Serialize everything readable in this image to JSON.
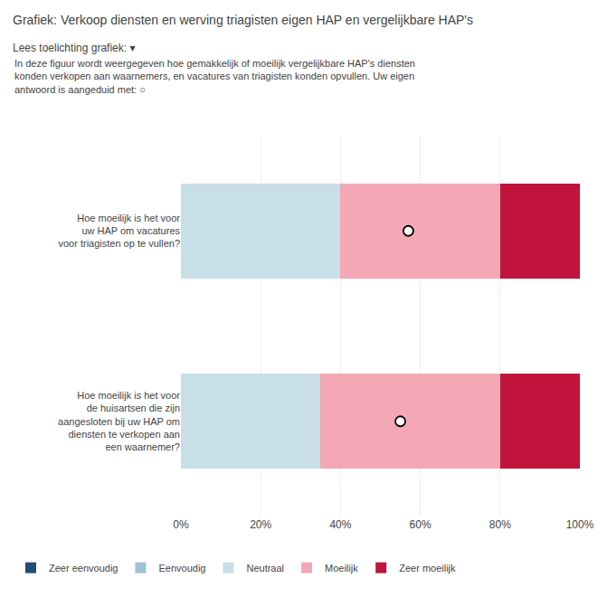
{
  "chart_data": {
    "type": "bar",
    "orientation": "horizontal",
    "stacked": true,
    "title": "Grafiek: Verkoop diensten en werving triagisten eigen HAP en vergelijkbare HAP's",
    "subtitle": "Lees toelichting grafiek: ▾",
    "annotations": [
      "In deze figuur wordt weergegeven hoe gemakkelijk of moeilijk vergelijkbare HAP's diensten\nkonden verkopen aan waarnemers, en vacatures van triagisten konden opvullen. Uw eigen\nantwoord is aangeduid met: ○"
    ],
    "categories": [
      "Hoe moeilijk is het voor\nuw HAP om vacatures\nvoor triagisten op te vullen?",
      "Hoe moeilijk is het voor\nde huisartsen die zijn\naangesloten bij uw HAP om\ndiensten te verkopen aan\neen waarnemer?"
    ],
    "series": [
      {
        "name": "Zeer eenvoudig",
        "color": "#1f4e79",
        "values": [
          0,
          0
        ]
      },
      {
        "name": "Eenvoudig",
        "color": "#9dc3d4",
        "values": [
          0,
          0
        ]
      },
      {
        "name": "Neutraal",
        "color": "#c9dfe8",
        "values": [
          40,
          35
        ]
      },
      {
        "name": "Moeilijk",
        "color": "#f4a7b4",
        "values": [
          40,
          45
        ]
      },
      {
        "name": "Zeer moeilijk",
        "color": "#c0143c",
        "values": [
          20,
          20
        ]
      },
      {
        "type": "scatter",
        "marker": "circle",
        "values": [
          57,
          55
        ]
      }
    ],
    "xlim": [
      0,
      100
    ],
    "xticks": [
      {
        "value": 0,
        "label": "0%"
      },
      {
        "value": 20,
        "label": "20%"
      },
      {
        "value": 40,
        "label": "40%"
      },
      {
        "value": 60,
        "label": "60%"
      },
      {
        "value": 80,
        "label": "80%"
      },
      {
        "value": 100,
        "label": "100%"
      }
    ],
    "grid": true
  }
}
